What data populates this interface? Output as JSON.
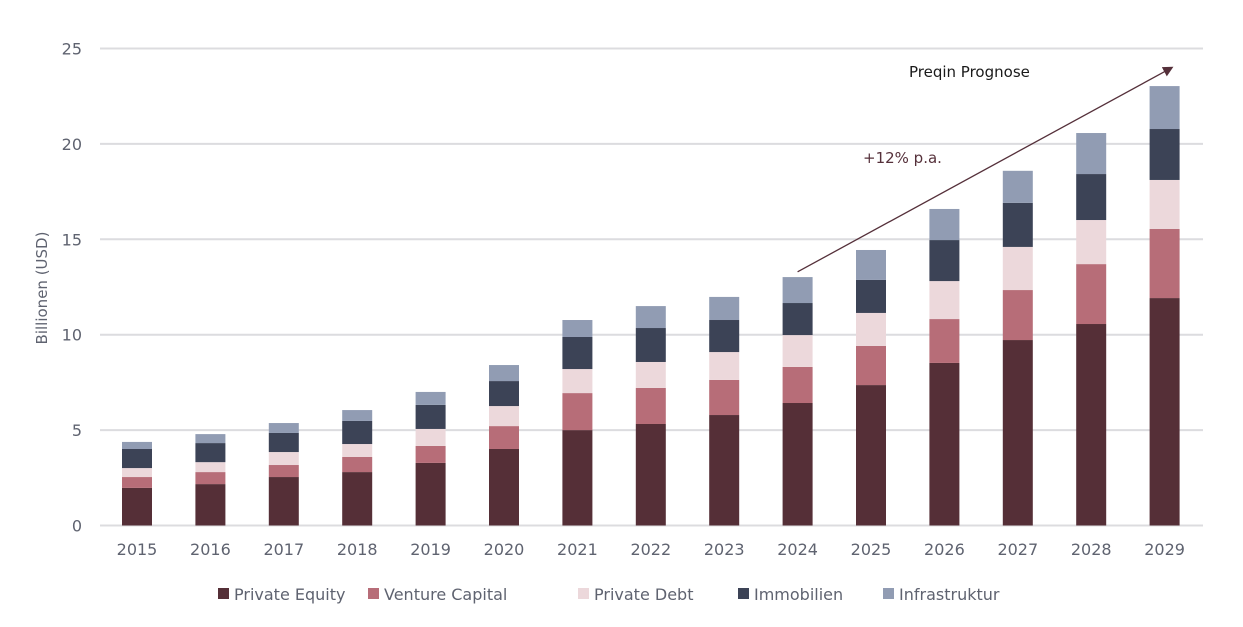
{
  "chart_data": {
    "type": "bar",
    "stacked": true,
    "title": "",
    "xlabel": "",
    "ylabel": "Billionen (USD)",
    "ylim": [
      0,
      25
    ],
    "yticks": [
      0,
      5,
      10,
      15,
      20,
      25
    ],
    "grid": true,
    "legend_position": "bottom",
    "categories": [
      "2015",
      "2016",
      "2017",
      "2018",
      "2019",
      "2020",
      "2021",
      "2022",
      "2023",
      "2024",
      "2025",
      "2026",
      "2027",
      "2028",
      "2029"
    ],
    "series": [
      {
        "name": "Private Equity",
        "color": "#552f37",
        "values": [
          1.97,
          2.17,
          2.54,
          2.8,
          3.28,
          4.01,
          5.0,
          5.32,
          5.79,
          6.42,
          7.36,
          8.52,
          9.72,
          10.56,
          11.92
        ]
      },
      {
        "name": "Venture Capital",
        "color": "#b76d78",
        "values": [
          0.57,
          0.63,
          0.63,
          0.79,
          0.89,
          1.2,
          1.94,
          1.89,
          1.84,
          1.89,
          2.05,
          2.3,
          2.62,
          3.14,
          3.62
        ]
      },
      {
        "name": "Private Debt",
        "color": "#ecd8db",
        "values": [
          0.47,
          0.52,
          0.68,
          0.68,
          0.89,
          1.05,
          1.26,
          1.36,
          1.46,
          1.67,
          1.73,
          1.99,
          2.26,
          2.31,
          2.57
        ]
      },
      {
        "name": "Immobilien",
        "color": "#3c4356",
        "values": [
          1.0,
          1.0,
          1.0,
          1.21,
          1.26,
          1.31,
          1.68,
          1.78,
          1.68,
          1.68,
          1.73,
          2.15,
          2.31,
          2.41,
          2.67
        ]
      },
      {
        "name": "Infrastruktur",
        "color": "#919cb3",
        "values": [
          0.37,
          0.47,
          0.52,
          0.57,
          0.68,
          0.84,
          0.89,
          1.15,
          1.21,
          1.36,
          1.57,
          1.63,
          1.68,
          2.15,
          2.25
        ]
      }
    ],
    "annotations": [
      {
        "text": "Preqin Prognose",
        "color": "#1a1a1a"
      },
      {
        "text": "+12% p.a.",
        "color": "#55303a"
      }
    ],
    "trend_arrow": {
      "from": {
        "category": "2024",
        "value": 14.5
      },
      "to": {
        "category": "2029",
        "value": 24.2
      },
      "color": "#55303a"
    }
  },
  "colors": {
    "grid": "#dcdcdf",
    "tick_text": "#5f6370"
  }
}
